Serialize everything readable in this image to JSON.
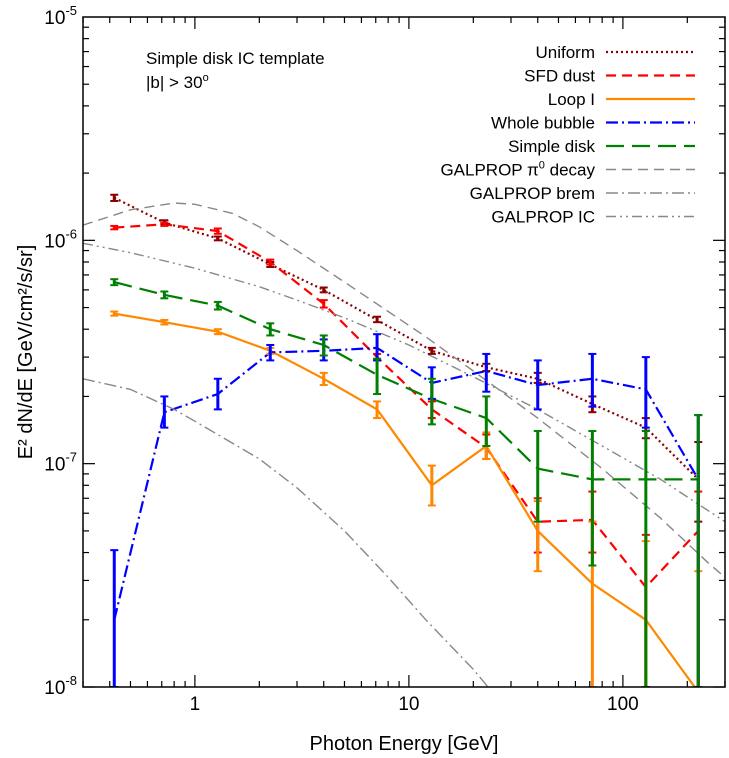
{
  "chart_data": {
    "type": "line",
    "xlabel": "Photon Energy [GeV]",
    "ylabel": "E² dN/dE [GeV/cm²/s/sr]",
    "x_scale": "log",
    "y_scale": "log",
    "xlim": [
      0.3,
      300
    ],
    "ylim": [
      1e-08,
      1e-05
    ],
    "x_ticks": [
      {
        "value": 1,
        "label": "1"
      },
      {
        "value": 10,
        "label": "10"
      },
      {
        "value": 100,
        "label": "100"
      }
    ],
    "y_ticks": [
      {
        "value": 1e-08,
        "base": "10",
        "exp": "-8"
      },
      {
        "value": 1e-07,
        "base": "10",
        "exp": "-7"
      },
      {
        "value": 1e-06,
        "base": "10",
        "exp": "-6"
      },
      {
        "value": 1e-05,
        "base": "10",
        "exp": "-5"
      }
    ],
    "grid": false,
    "annotations": [
      {
        "text": "Simple disk IC template"
      },
      {
        "text": "|b| > 30",
        "sup": "o"
      }
    ],
    "legend_position": "top-right",
    "series": [
      {
        "name": "Uniform",
        "color": "#8b0000",
        "dash": "dotted",
        "errors": true,
        "points": [
          [
            0.42,
            1.55e-06
          ],
          [
            0.72,
            1.2e-06
          ],
          [
            1.28,
            1.02e-06
          ],
          [
            2.25,
            7.8e-07
          ],
          [
            4.0,
            6e-07
          ],
          [
            7.1,
            4.4e-07
          ],
          [
            12.8,
            3.2e-07
          ],
          [
            23,
            2.7e-07
          ],
          [
            40,
            2.4e-07
          ],
          [
            72,
            1.85e-07
          ],
          [
            128,
            1.45e-07
          ],
          [
            225,
            8.5e-08
          ]
        ],
        "err_lo": [
          1.5e-06,
          1.18e-06,
          1e-06,
          7.6e-07,
          5.85e-07,
          4.3e-07,
          3.1e-07,
          2.6e-07,
          2.3e-07,
          1.7e-07,
          1.3e-07,
          5.5e-08
        ],
        "err_hi": [
          1.6e-06,
          1.23e-06,
          1.04e-06,
          8e-07,
          6.15e-07,
          4.55e-07,
          3.3e-07,
          2.8e-07,
          2.55e-07,
          2e-07,
          1.6e-07,
          1.25e-07
        ]
      },
      {
        "name": "SFD dust",
        "color": "#ff0000",
        "dash": "dashed",
        "errors": true,
        "points": [
          [
            0.42,
            1.14e-06
          ],
          [
            0.72,
            1.18e-06
          ],
          [
            1.28,
            1.1e-06
          ],
          [
            2.25,
            8e-07
          ],
          [
            4.0,
            5.2e-07
          ],
          [
            7.1,
            3e-07
          ],
          [
            12.8,
            1.75e-07
          ],
          [
            23,
            1.18e-07
          ],
          [
            40,
            5.5e-08
          ],
          [
            72,
            5.6e-08
          ],
          [
            128,
            2.8e-08
          ],
          [
            225,
            5e-08
          ]
        ],
        "err_lo": [
          1.12e-06,
          1.16e-06,
          1.07e-06,
          7.8e-07,
          5e-07,
          2.9e-07,
          1.6e-07,
          1.05e-07,
          4e-08,
          4e-08,
          1e-08,
          1e-08
        ],
        "err_hi": [
          1.16e-06,
          1.2e-06,
          1.13e-06,
          8.2e-07,
          5.4e-07,
          3.1e-07,
          1.9e-07,
          1.35e-07,
          7e-08,
          7.5e-08,
          4.8e-08,
          7.5e-08
        ]
      },
      {
        "name": "Loop I",
        "color": "#ff8800",
        "dash": "solid",
        "errors": true,
        "points": [
          [
            0.42,
            4.7e-07
          ],
          [
            0.72,
            4.3e-07
          ],
          [
            1.28,
            3.9e-07
          ],
          [
            2.25,
            3.2e-07
          ],
          [
            4.0,
            2.4e-07
          ],
          [
            7.1,
            1.75e-07
          ],
          [
            12.8,
            8e-08
          ],
          [
            23,
            1.2e-07
          ],
          [
            40,
            5e-08
          ],
          [
            72,
            2.9e-08
          ],
          [
            128,
            2e-08
          ],
          [
            225,
            9.5e-09
          ]
        ],
        "err_lo": [
          4.6e-07,
          4.2e-07,
          3.8e-07,
          3.1e-07,
          2.25e-07,
          1.6e-07,
          6.5e-08,
          1.05e-07,
          3.3e-08,
          1e-08,
          1e-08,
          1e-08
        ],
        "err_hi": [
          4.8e-07,
          4.4e-07,
          4e-07,
          3.3e-07,
          2.55e-07,
          1.9e-07,
          9.8e-08,
          1.38e-07,
          6.8e-08,
          5.5e-08,
          4.5e-08,
          3.3e-08
        ]
      },
      {
        "name": "Whole bubble",
        "color": "#0000ff",
        "dash": "dash-dot",
        "errors": true,
        "points": [
          [
            0.42,
            2e-08
          ],
          [
            0.72,
            1.7e-07
          ],
          [
            1.28,
            2.05e-07
          ],
          [
            2.25,
            3.15e-07
          ],
          [
            4.0,
            3.2e-07
          ],
          [
            7.1,
            3.3e-07
          ],
          [
            12.8,
            2.3e-07
          ],
          [
            23,
            2.6e-07
          ],
          [
            40,
            2.25e-07
          ],
          [
            72,
            2.4e-07
          ],
          [
            128,
            2.15e-07
          ],
          [
            225,
            8.5e-08
          ]
        ],
        "err_lo": [
          1e-08,
          1.45e-07,
          1.75e-07,
          2.9e-07,
          2.9e-07,
          2.9e-07,
          1.95e-07,
          2.1e-07,
          1.75e-07,
          1.8e-07,
          1.45e-07,
          1e-08
        ],
        "err_hi": [
          4.1e-08,
          2e-07,
          2.4e-07,
          3.4e-07,
          3.6e-07,
          3.8e-07,
          2.7e-07,
          3.1e-07,
          2.9e-07,
          3.1e-07,
          3e-07,
          1.65e-07
        ]
      },
      {
        "name": "Simple disk",
        "color": "#008000",
        "dash": "long-dash",
        "errors": true,
        "points": [
          [
            0.42,
            6.5e-07
          ],
          [
            0.72,
            5.7e-07
          ],
          [
            1.28,
            5.1e-07
          ],
          [
            2.25,
            4e-07
          ],
          [
            4.0,
            3.4e-07
          ],
          [
            7.1,
            2.5e-07
          ],
          [
            12.8,
            1.95e-07
          ],
          [
            23,
            1.6e-07
          ],
          [
            40,
            9.5e-08
          ],
          [
            72,
            8.5e-08
          ],
          [
            128,
            8.5e-08
          ],
          [
            225,
            8.5e-08
          ]
        ],
        "err_lo": [
          6.3e-07,
          5.5e-07,
          4.9e-07,
          3.75e-07,
          3.05e-07,
          2.05e-07,
          1.5e-07,
          1.2e-07,
          5.5e-08,
          3.5e-08,
          1e-08,
          1e-08
        ],
        "err_hi": [
          6.7e-07,
          5.9e-07,
          5.3e-07,
          4.25e-07,
          3.75e-07,
          2.95e-07,
          2.4e-07,
          2e-07,
          1.4e-07,
          1.4e-07,
          1.4e-07,
          1.65e-07
        ]
      },
      {
        "name": "GALPROP π⁰ decay",
        "color": "#888888",
        "dash": "dashed",
        "errors": false,
        "points": [
          [
            0.3,
            1.17e-06
          ],
          [
            0.5,
            1.37e-06
          ],
          [
            0.8,
            1.47e-06
          ],
          [
            1.0,
            1.45e-06
          ],
          [
            1.5,
            1.32e-06
          ],
          [
            2.0,
            1.15e-06
          ],
          [
            3.0,
            9e-07
          ],
          [
            5.0,
            6.5e-07
          ],
          [
            8.0,
            4.8e-07
          ],
          [
            12,
            3.7e-07
          ],
          [
            20,
            2.6e-07
          ],
          [
            40,
            1.6e-07
          ],
          [
            80,
            9.5e-08
          ],
          [
            150,
            5.7e-08
          ],
          [
            250,
            3.6e-08
          ],
          [
            300,
            3.1e-08
          ]
        ]
      },
      {
        "name": "GALPROP brem",
        "color": "#888888",
        "dash": "dash-dot",
        "errors": false,
        "points": [
          [
            0.3,
            2.4e-07
          ],
          [
            0.5,
            2.15e-07
          ],
          [
            0.8,
            1.75e-07
          ],
          [
            1.0,
            1.55e-07
          ],
          [
            2.0,
            1.05e-07
          ],
          [
            3.0,
            7.8e-08
          ],
          [
            5.0,
            5e-08
          ],
          [
            8.0,
            3.1e-08
          ],
          [
            12,
            2e-08
          ],
          [
            20,
            1.2e-08
          ],
          [
            30,
            7.5e-09
          ]
        ]
      },
      {
        "name": "GALPROP IC",
        "color": "#888888",
        "dash": "dash-dot-dot",
        "errors": false,
        "points": [
          [
            0.3,
            9.7e-07
          ],
          [
            0.5,
            8.8e-07
          ],
          [
            1.0,
            7.5e-07
          ],
          [
            2.0,
            6.2e-07
          ],
          [
            3.0,
            5.4e-07
          ],
          [
            5.0,
            4.5e-07
          ],
          [
            10,
            3.4e-07
          ],
          [
            20,
            2.45e-07
          ],
          [
            40,
            1.75e-07
          ],
          [
            80,
            1.2e-07
          ],
          [
            150,
            8.5e-08
          ],
          [
            300,
            5.5e-08
          ]
        ]
      }
    ]
  }
}
